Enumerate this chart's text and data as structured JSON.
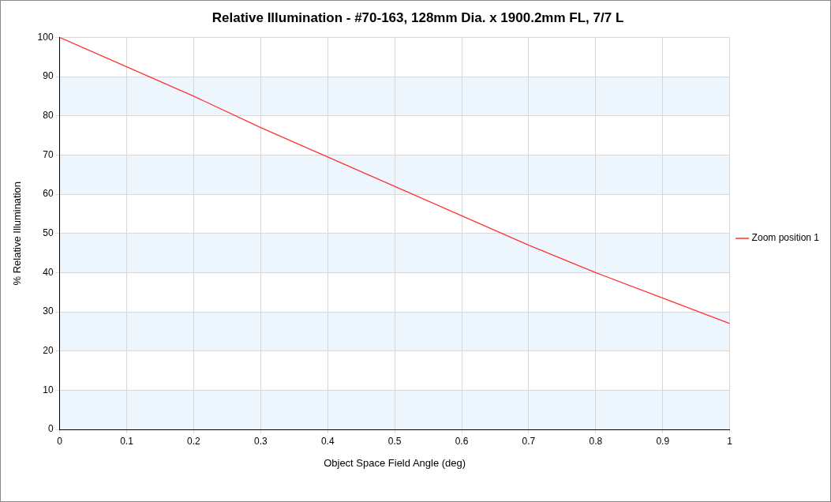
{
  "chart_data": {
    "type": "line",
    "title": "Relative Illumination - #70-163, 128mm Dia. x 1900.2mm FL, 7/7 L",
    "xlabel": "Object Space Field Angle (deg)",
    "ylabel": "% Relative Illumination",
    "x": [
      0,
      0.1,
      0.2,
      0.3,
      0.4,
      0.5,
      0.6,
      0.7,
      0.8,
      0.9,
      1
    ],
    "series": [
      {
        "name": "Zoom position 1",
        "color": "#ff3333",
        "values": [
          100,
          92.5,
          85,
          77,
          69.5,
          62,
          54.5,
          47,
          40,
          33.5,
          27
        ]
      }
    ],
    "xlim": [
      0,
      1
    ],
    "xticks": [
      0,
      0.1,
      0.2,
      0.3,
      0.4,
      0.5,
      0.6,
      0.7,
      0.8,
      0.9,
      1
    ],
    "ylim": [
      0,
      100
    ],
    "yticks": [
      0,
      10,
      20,
      30,
      40,
      50,
      60,
      70,
      80,
      90,
      100
    ],
    "bands": [
      {
        "axis": "y",
        "from": 0,
        "to": 10,
        "color": "#eef6fd"
      },
      {
        "axis": "y",
        "from": 20,
        "to": 30,
        "color": "#eef6fd"
      },
      {
        "axis": "y",
        "from": 40,
        "to": 50,
        "color": "#eef6fd"
      },
      {
        "axis": "y",
        "from": 60,
        "to": 70,
        "color": "#eef6fd"
      },
      {
        "axis": "y",
        "from": 80,
        "to": 90,
        "color": "#eef6fd"
      }
    ],
    "grid": true,
    "legend": "right",
    "marker": "none",
    "line_style": "solid"
  }
}
